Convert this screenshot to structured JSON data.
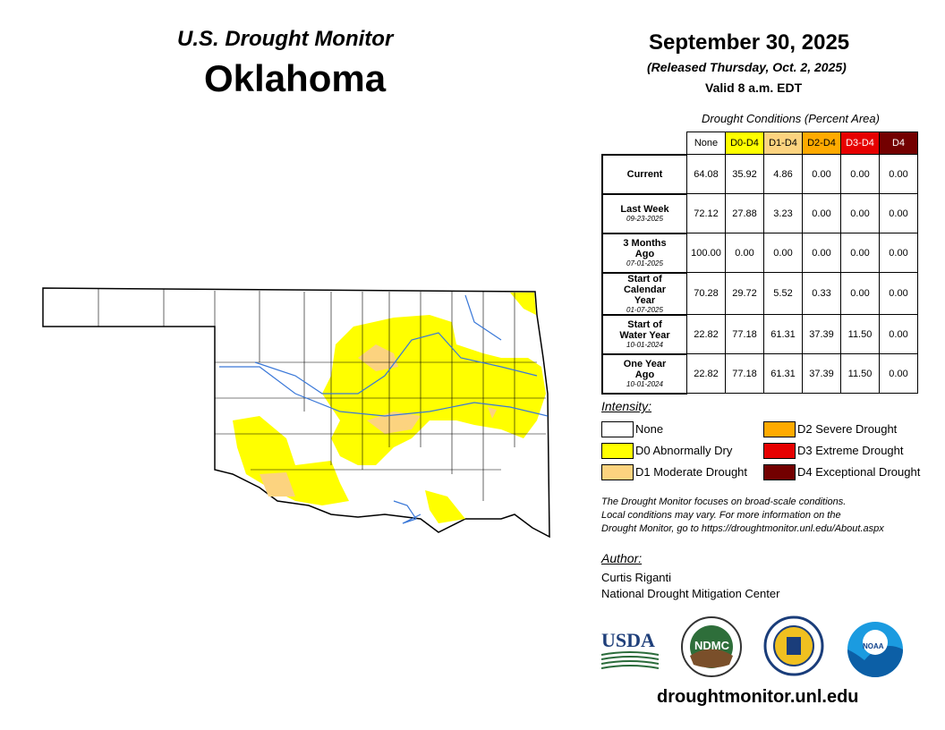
{
  "header": {
    "title": "U.S. Drought Monitor",
    "state": "Oklahoma",
    "date": "September 30, 2025",
    "released": "(Released Thursday, Oct. 2, 2025)",
    "valid": "Valid 8 a.m. EDT"
  },
  "table": {
    "caption": "Drought Conditions (Percent Area)",
    "columns": [
      {
        "label": "None",
        "color": "#ffffff",
        "text": "#000000"
      },
      {
        "label": "D0-D4",
        "color": "#ffff00",
        "text": "#000000"
      },
      {
        "label": "D1-D4",
        "color": "#fcd37f",
        "text": "#000000"
      },
      {
        "label": "D2-D4",
        "color": "#ffaa00",
        "text": "#000000"
      },
      {
        "label": "D3-D4",
        "color": "#e60000",
        "text": "#ffffff"
      },
      {
        "label": "D4",
        "color": "#730000",
        "text": "#ffffff"
      }
    ],
    "rows": [
      {
        "label": "Current",
        "values": [
          "64.08",
          "35.92",
          "4.86",
          "0.00",
          "0.00",
          "0.00"
        ]
      },
      {
        "label": "Last Week",
        "date": "09-23-2025",
        "values": [
          "72.12",
          "27.88",
          "3.23",
          "0.00",
          "0.00",
          "0.00"
        ]
      },
      {
        "label": "3 Months Ago",
        "date": "07-01-2025",
        "values": [
          "100.00",
          "0.00",
          "0.00",
          "0.00",
          "0.00",
          "0.00"
        ]
      },
      {
        "label": "Start of Calendar Year",
        "date": "01-07-2025",
        "values": [
          "70.28",
          "29.72",
          "5.52",
          "0.33",
          "0.00",
          "0.00"
        ]
      },
      {
        "label": "Start of Water Year",
        "date": "10-01-2024",
        "values": [
          "22.82",
          "77.18",
          "61.31",
          "37.39",
          "11.50",
          "0.00"
        ]
      },
      {
        "label": "One Year Ago",
        "date": "10-01-2024",
        "values": [
          "22.82",
          "77.18",
          "61.31",
          "37.39",
          "11.50",
          "0.00"
        ]
      }
    ]
  },
  "legend": {
    "title": "Intensity:",
    "items": [
      {
        "label": "None",
        "color": "#ffffff"
      },
      {
        "label": "D0 Abnormally Dry",
        "color": "#ffff00"
      },
      {
        "label": "D1 Moderate Drought",
        "color": "#fcd37f"
      },
      {
        "label": "D2 Severe Drought",
        "color": "#ffaa00"
      },
      {
        "label": "D3 Extreme Drought",
        "color": "#e60000"
      },
      {
        "label": "D4 Exceptional Drought",
        "color": "#730000"
      }
    ]
  },
  "note": [
    "The Drought Monitor focuses on broad-scale conditions.",
    "Local conditions may vary. For more information on the",
    "Drought Monitor, go to https://droughtmonitor.unl.edu/About.aspx"
  ],
  "author": {
    "title": "Author:",
    "name": "Curtis Riganti",
    "org": "National Drought Mitigation Center"
  },
  "logos": {
    "usda": "USDA",
    "ndmc": "NDMC",
    "noaa": "NOAA"
  },
  "url": "droughtmonitor.unl.edu"
}
